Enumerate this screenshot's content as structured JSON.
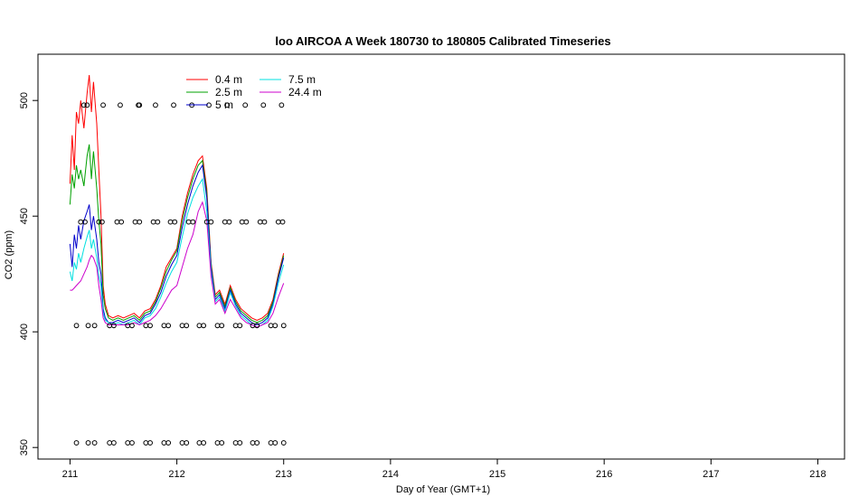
{
  "chart_data": {
    "type": "line",
    "title": "loo AIRCOA A  Week 180730 to 180805  Calibrated Timeseries",
    "xlabel": "Day of Year (GMT+1)",
    "ylabel": "CO2 (ppm)",
    "xlim": [
      210.7,
      218.25
    ],
    "ylim": [
      345,
      520
    ],
    "x_ticks": [
      211,
      212,
      213,
      214,
      215,
      216,
      217,
      218
    ],
    "y_ticks": [
      350,
      400,
      450,
      500
    ],
    "grid": false,
    "legend_position": "top-left",
    "series": [
      {
        "name": "0.4 m",
        "color": "#ff0000",
        "x": [
          211.0,
          211.02,
          211.04,
          211.06,
          211.08,
          211.1,
          211.13,
          211.16,
          211.18,
          211.2,
          211.22,
          211.25,
          211.27,
          211.29,
          211.31,
          211.33,
          211.36,
          211.4,
          211.45,
          211.5,
          211.55,
          211.6,
          211.65,
          211.7,
          211.75,
          211.8,
          211.85,
          211.9,
          211.95,
          212.0,
          212.05,
          212.1,
          212.15,
          212.2,
          212.24,
          212.28,
          212.32,
          212.36,
          212.4,
          212.45,
          212.5,
          212.55,
          212.6,
          212.65,
          212.7,
          212.75,
          212.8,
          212.85,
          212.9,
          212.95,
          213.0
        ],
        "y": [
          464,
          485,
          470,
          495,
          490,
          500,
          488,
          503,
          511,
          495,
          508,
          490,
          470,
          450,
          420,
          412,
          407,
          406,
          407,
          406,
          407,
          408,
          406,
          409,
          410,
          414,
          420,
          428,
          432,
          436,
          450,
          460,
          468,
          474,
          476,
          462,
          430,
          416,
          418,
          412,
          420,
          414,
          410,
          408,
          406,
          405,
          406,
          408,
          414,
          425,
          434
        ]
      },
      {
        "name": "2.5 m",
        "color": "#00a000",
        "x": [
          211.0,
          211.02,
          211.04,
          211.06,
          211.08,
          211.1,
          211.13,
          211.16,
          211.18,
          211.2,
          211.22,
          211.25,
          211.27,
          211.29,
          211.31,
          211.33,
          211.36,
          211.4,
          211.45,
          211.5,
          211.55,
          211.6,
          211.65,
          211.7,
          211.75,
          211.8,
          211.85,
          211.9,
          211.95,
          212.0,
          212.05,
          212.1,
          212.15,
          212.2,
          212.24,
          212.28,
          212.32,
          212.36,
          212.4,
          212.45,
          212.5,
          212.55,
          212.6,
          212.65,
          212.7,
          212.75,
          212.8,
          212.85,
          212.9,
          212.95,
          213.0
        ],
        "y": [
          455,
          468,
          462,
          472,
          466,
          470,
          463,
          476,
          481,
          466,
          478,
          462,
          448,
          438,
          416,
          410,
          406,
          405,
          406,
          405,
          406,
          407,
          405,
          408,
          409,
          413,
          419,
          426,
          431,
          435,
          448,
          458,
          466,
          472,
          474,
          460,
          429,
          415,
          417,
          411,
          419,
          413,
          409,
          407,
          405,
          404,
          405,
          407,
          413,
          424,
          433
        ]
      },
      {
        "name": "5 m",
        "color": "#0000cc",
        "x": [
          211.0,
          211.02,
          211.04,
          211.06,
          211.08,
          211.1,
          211.13,
          211.16,
          211.18,
          211.2,
          211.22,
          211.25,
          211.27,
          211.29,
          211.31,
          211.33,
          211.36,
          211.4,
          211.45,
          211.5,
          211.55,
          211.6,
          211.65,
          211.7,
          211.75,
          211.8,
          211.85,
          211.9,
          211.95,
          212.0,
          212.05,
          212.1,
          212.15,
          212.2,
          212.24,
          212.28,
          212.32,
          212.36,
          212.4,
          212.45,
          212.5,
          212.55,
          212.6,
          212.65,
          212.7,
          212.75,
          212.8,
          212.85,
          212.9,
          212.95,
          213.0
        ],
        "y": [
          438,
          428,
          442,
          436,
          446,
          440,
          448,
          452,
          455,
          444,
          450,
          440,
          430,
          425,
          410,
          406,
          404,
          404,
          405,
          404,
          405,
          406,
          404,
          407,
          408,
          412,
          417,
          424,
          429,
          433,
          445,
          455,
          463,
          469,
          472,
          458,
          428,
          414,
          416,
          410,
          418,
          412,
          408,
          406,
          404,
          403,
          404,
          406,
          412,
          423,
          432
        ]
      },
      {
        "name": "7.5 m",
        "color": "#00e0e0",
        "x": [
          211.0,
          211.02,
          211.04,
          211.06,
          211.08,
          211.1,
          211.13,
          211.16,
          211.18,
          211.2,
          211.22,
          211.25,
          211.27,
          211.29,
          211.31,
          211.33,
          211.36,
          211.4,
          211.45,
          211.5,
          211.55,
          211.6,
          211.65,
          211.7,
          211.75,
          211.8,
          211.85,
          211.9,
          211.95,
          212.0,
          212.05,
          212.1,
          212.15,
          212.2,
          212.24,
          212.28,
          212.32,
          212.36,
          212.4,
          212.45,
          212.5,
          212.55,
          212.6,
          212.65,
          212.7,
          212.75,
          212.8,
          212.85,
          212.9,
          212.95,
          213.0
        ],
        "y": [
          426,
          422,
          430,
          427,
          434,
          430,
          436,
          441,
          444,
          436,
          440,
          432,
          424,
          420,
          408,
          405,
          404,
          403,
          404,
          403,
          404,
          405,
          403,
          406,
          407,
          410,
          415,
          421,
          426,
          430,
          441,
          451,
          458,
          463,
          466,
          452,
          426,
          413,
          415,
          409,
          417,
          411,
          407,
          405,
          403,
          402,
          403,
          405,
          411,
          421,
          429
        ]
      },
      {
        "name": "24.4 m",
        "color": "#cc00cc",
        "x": [
          211.0,
          211.02,
          211.04,
          211.06,
          211.08,
          211.1,
          211.13,
          211.16,
          211.18,
          211.2,
          211.22,
          211.25,
          211.27,
          211.29,
          211.31,
          211.33,
          211.36,
          211.4,
          211.45,
          211.5,
          211.55,
          211.6,
          211.65,
          211.7,
          211.75,
          211.8,
          211.85,
          211.9,
          211.95,
          212.0,
          212.05,
          212.1,
          212.15,
          212.2,
          212.24,
          212.28,
          212.32,
          212.36,
          212.4,
          212.45,
          212.5,
          212.55,
          212.6,
          212.65,
          212.7,
          212.75,
          212.8,
          212.85,
          212.9,
          212.95,
          213.0
        ],
        "y": [
          418,
          418,
          419,
          420,
          421,
          422,
          425,
          428,
          431,
          433,
          432,
          428,
          420,
          414,
          406,
          404,
          403,
          403,
          403,
          403,
          403,
          404,
          403,
          404,
          405,
          407,
          410,
          414,
          418,
          420,
          428,
          436,
          442,
          452,
          456,
          448,
          424,
          412,
          414,
          408,
          414,
          410,
          406,
          404,
          403,
          402,
          403,
          404,
          408,
          415,
          421
        ]
      }
    ],
    "marker_rows": [
      {
        "y": 498,
        "x": [
          211.13,
          211.16,
          211.31,
          211.47,
          211.64,
          211.65,
          211.8,
          211.97,
          212.14,
          212.3,
          212.47,
          212.64,
          212.81,
          212.98
        ]
      },
      {
        "y": 447.5,
        "x": [
          211.1,
          211.14,
          211.27,
          211.3,
          211.44,
          211.48,
          211.61,
          211.65,
          211.78,
          211.82,
          211.94,
          211.98,
          212.11,
          212.15,
          212.28,
          212.32,
          212.45,
          212.49,
          212.61,
          212.65,
          212.78,
          212.82,
          212.95,
          212.99
        ]
      },
      {
        "y": 402.7,
        "x": [
          211.06,
          211.17,
          211.23,
          211.37,
          211.41,
          211.54,
          211.58,
          211.71,
          211.75,
          211.88,
          211.92,
          212.05,
          212.09,
          212.21,
          212.25,
          212.38,
          212.42,
          212.55,
          212.59,
          212.71,
          212.75,
          212.88,
          212.92,
          213.0
        ]
      },
      {
        "y": 352,
        "x": [
          211.06,
          211.17,
          211.23,
          211.37,
          211.41,
          211.54,
          211.58,
          211.71,
          211.75,
          211.88,
          211.92,
          212.05,
          212.09,
          212.21,
          212.25,
          212.38,
          212.42,
          212.55,
          212.59,
          212.71,
          212.75,
          212.88,
          212.92,
          213.0
        ]
      }
    ]
  }
}
